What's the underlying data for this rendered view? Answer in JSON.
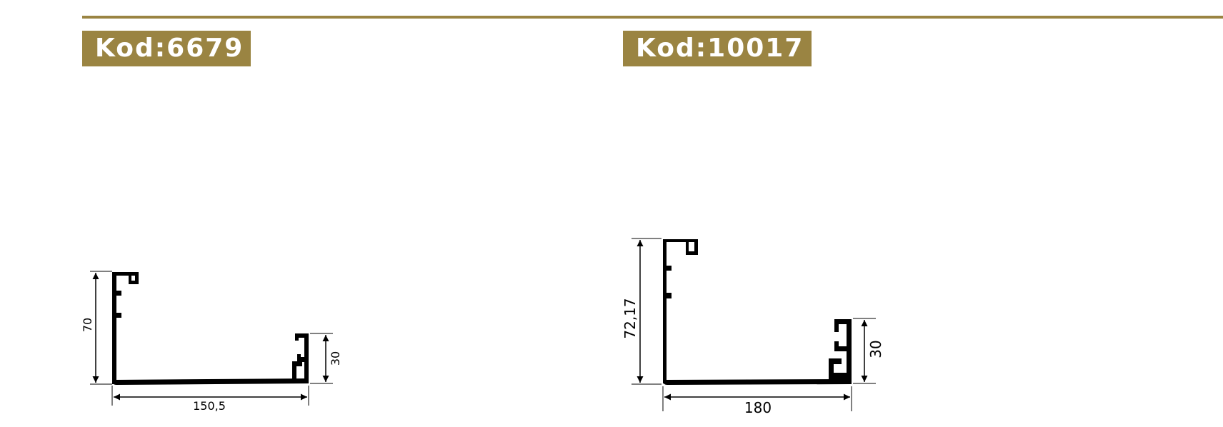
{
  "colors": {
    "accent": "#9a8442",
    "label_text": "#ffffff",
    "line": "#000000"
  },
  "profiles": [
    {
      "code_label": "Kod:6679",
      "dimensions": {
        "height": "70",
        "width": "150,5",
        "lip_height": "30"
      }
    },
    {
      "code_label": "Kod:10017",
      "dimensions": {
        "height": "72,17",
        "width": "180",
        "lip_height": "30"
      }
    }
  ]
}
